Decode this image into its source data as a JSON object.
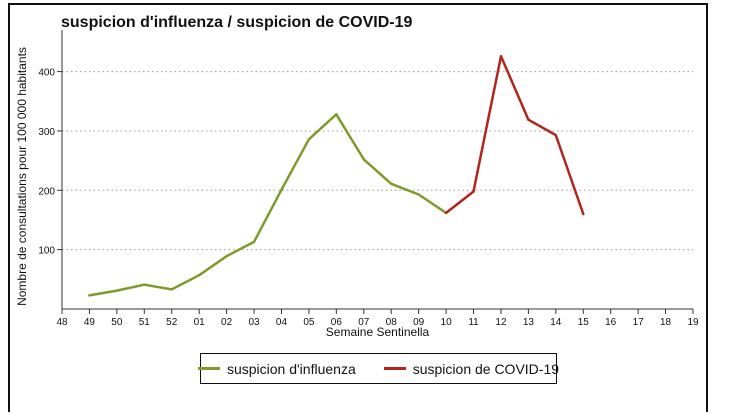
{
  "chart_data": {
    "type": "line",
    "title": "suspicion d'influenza / suspicion de COVID-19",
    "xlabel": "Semaine Sentinella",
    "ylabel": "Nombre de consultations pour 100 000 habitants",
    "categories": [
      "48",
      "49",
      "50",
      "51",
      "52",
      "01",
      "02",
      "03",
      "04",
      "05",
      "06",
      "07",
      "08",
      "09",
      "10",
      "11",
      "12",
      "13",
      "14",
      "15",
      "16",
      "17",
      "18",
      "19"
    ],
    "ylim": [
      0,
      460
    ],
    "yticks": [
      100,
      200,
      300,
      400
    ],
    "grid": true,
    "legend": "bottom-center",
    "series": [
      {
        "name": "suspicion d'influenza",
        "color": "#7f9a2b",
        "values": [
          null,
          23,
          31,
          41,
          33,
          57,
          89,
          113,
          201,
          286,
          328,
          252,
          211,
          193,
          162,
          null,
          null,
          null,
          null,
          null,
          null,
          null,
          null,
          null
        ]
      },
      {
        "name": "suspicion de COVID-19",
        "color": "#b1251e",
        "values": [
          null,
          null,
          null,
          null,
          null,
          null,
          null,
          null,
          null,
          null,
          null,
          null,
          null,
          null,
          162,
          198,
          426,
          319,
          293,
          160,
          null,
          null,
          null,
          null
        ]
      }
    ]
  }
}
